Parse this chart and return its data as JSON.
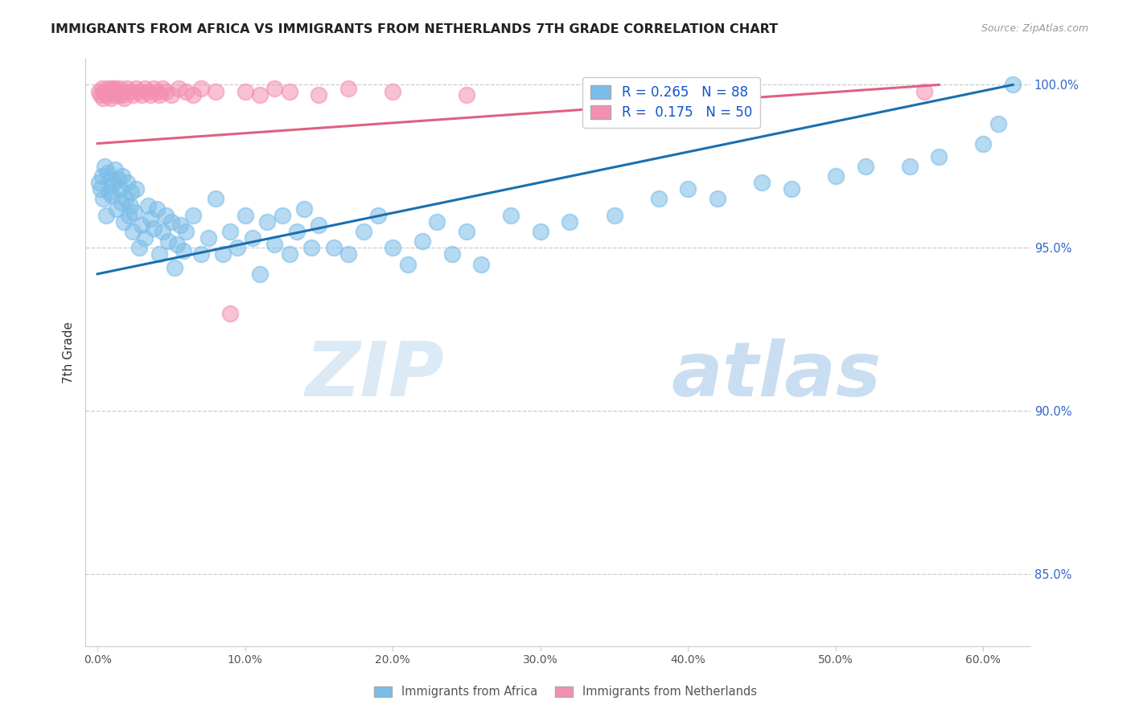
{
  "title": "IMMIGRANTS FROM AFRICA VS IMMIGRANTS FROM NETHERLANDS 7TH GRADE CORRELATION CHART",
  "source": "Source: ZipAtlas.com",
  "xlabel_ticks": [
    "0.0%",
    "10.0%",
    "20.0%",
    "30.0%",
    "40.0%",
    "50.0%",
    "60.0%"
  ],
  "xlabel_vals": [
    0.0,
    0.1,
    0.2,
    0.3,
    0.4,
    0.5,
    0.6
  ],
  "ylabel_display": [
    "85.0%",
    "90.0%",
    "95.0%",
    "100.0%"
  ],
  "ylabel_display_vals": [
    0.85,
    0.9,
    0.95,
    1.0
  ],
  "ylim_low": 0.828,
  "ylim_high": 1.008,
  "xlim_low": -0.008,
  "xlim_high": 0.632,
  "R_africa": 0.265,
  "N_africa": 88,
  "R_netherlands": 0.175,
  "N_netherlands": 50,
  "color_africa": "#7bbde8",
  "color_netherlands": "#f48fb1",
  "line_color_africa": "#1a6faf",
  "line_color_netherlands": "#e06080",
  "legend_label_africa": "Immigrants from Africa",
  "legend_label_netherlands": "Immigrants from Netherlands",
  "ylabel": "7th Grade",
  "watermark_zip": "ZIP",
  "watermark_atlas": "atlas",
  "africa_x": [
    0.001,
    0.002,
    0.003,
    0.004,
    0.005,
    0.006,
    0.007,
    0.008,
    0.009,
    0.01,
    0.01,
    0.012,
    0.013,
    0.014,
    0.015,
    0.016,
    0.017,
    0.018,
    0.019,
    0.02,
    0.021,
    0.022,
    0.023,
    0.024,
    0.025,
    0.026,
    0.028,
    0.03,
    0.032,
    0.034,
    0.036,
    0.038,
    0.04,
    0.042,
    0.044,
    0.046,
    0.048,
    0.05,
    0.052,
    0.054,
    0.056,
    0.058,
    0.06,
    0.065,
    0.07,
    0.075,
    0.08,
    0.085,
    0.09,
    0.095,
    0.1,
    0.105,
    0.11,
    0.115,
    0.12,
    0.125,
    0.13,
    0.135,
    0.14,
    0.145,
    0.15,
    0.16,
    0.17,
    0.18,
    0.19,
    0.2,
    0.21,
    0.22,
    0.23,
    0.24,
    0.25,
    0.26,
    0.28,
    0.3,
    0.32,
    0.35,
    0.38,
    0.4,
    0.42,
    0.45,
    0.47,
    0.5,
    0.52,
    0.55,
    0.57,
    0.6,
    0.61,
    0.62
  ],
  "africa_y": [
    0.97,
    0.968,
    0.972,
    0.965,
    0.975,
    0.96,
    0.973,
    0.967,
    0.971,
    0.969,
    0.966,
    0.974,
    0.962,
    0.971,
    0.968,
    0.964,
    0.972,
    0.958,
    0.965,
    0.97,
    0.96,
    0.963,
    0.967,
    0.955,
    0.961,
    0.968,
    0.95,
    0.957,
    0.953,
    0.963,
    0.959,
    0.956,
    0.962,
    0.948,
    0.955,
    0.96,
    0.952,
    0.958,
    0.944,
    0.951,
    0.957,
    0.949,
    0.955,
    0.96,
    0.948,
    0.953,
    0.965,
    0.948,
    0.955,
    0.95,
    0.96,
    0.953,
    0.942,
    0.958,
    0.951,
    0.96,
    0.948,
    0.955,
    0.962,
    0.95,
    0.957,
    0.95,
    0.948,
    0.955,
    0.96,
    0.95,
    0.945,
    0.952,
    0.958,
    0.948,
    0.955,
    0.945,
    0.96,
    0.955,
    0.958,
    0.96,
    0.965,
    0.968,
    0.965,
    0.97,
    0.968,
    0.972,
    0.975,
    0.975,
    0.978,
    0.982,
    0.988,
    1.0
  ],
  "netherlands_x": [
    0.001,
    0.002,
    0.003,
    0.004,
    0.005,
    0.006,
    0.007,
    0.008,
    0.009,
    0.01,
    0.01,
    0.011,
    0.012,
    0.013,
    0.014,
    0.015,
    0.016,
    0.017,
    0.018,
    0.02,
    0.022,
    0.024,
    0.026,
    0.028,
    0.03,
    0.032,
    0.034,
    0.036,
    0.038,
    0.04,
    0.042,
    0.044,
    0.046,
    0.05,
    0.055,
    0.06,
    0.065,
    0.07,
    0.08,
    0.09,
    0.1,
    0.11,
    0.12,
    0.13,
    0.15,
    0.17,
    0.2,
    0.25,
    0.35,
    0.56
  ],
  "netherlands_y": [
    0.998,
    0.997,
    0.999,
    0.996,
    0.998,
    0.997,
    0.999,
    0.998,
    0.996,
    0.999,
    0.998,
    0.997,
    0.999,
    0.998,
    0.997,
    0.999,
    0.998,
    0.997,
    0.996,
    0.999,
    0.998,
    0.997,
    0.999,
    0.998,
    0.997,
    0.999,
    0.998,
    0.997,
    0.999,
    0.998,
    0.997,
    0.999,
    0.998,
    0.997,
    0.999,
    0.998,
    0.997,
    0.999,
    0.998,
    0.93,
    0.998,
    0.997,
    0.999,
    0.998,
    0.997,
    0.999,
    0.998,
    0.997,
    0.999,
    0.998
  ],
  "africa_line_x0": 0.0,
  "africa_line_y0": 0.942,
  "africa_line_x1": 0.62,
  "africa_line_y1": 1.0,
  "neth_line_x0": 0.0,
  "neth_line_y0": 0.982,
  "neth_line_x1": 0.57,
  "neth_line_y1": 1.0
}
